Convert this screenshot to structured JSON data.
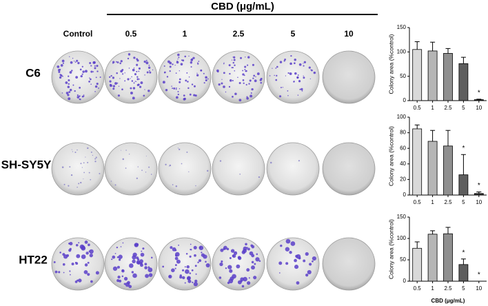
{
  "header": {
    "title": "CBD (μg/mL)",
    "columns": [
      "Control",
      "0.5",
      "1",
      "2.5",
      "5",
      "10"
    ],
    "rows": [
      "C6",
      "SH-SY5Y",
      "HT22"
    ]
  },
  "chart_data": [
    {
      "type": "bar",
      "categories": [
        "0.5",
        "1",
        "2.5",
        "5",
        "10"
      ],
      "values": [
        105,
        102,
        97,
        76,
        2
      ],
      "errors": [
        16,
        18,
        10,
        13,
        1
      ],
      "colors": [
        "#d9d9d9",
        "#b5b5b5",
        "#8f8f8f",
        "#5e5e5e",
        "#333333"
      ],
      "ylim": [
        0,
        150
      ],
      "yticks": [
        0,
        50,
        100,
        150
      ],
      "y_label": "Colony area (%control)",
      "annotations": [
        {
          "text": "*",
          "at": "10"
        }
      ]
    },
    {
      "type": "bar",
      "categories": [
        "0.5",
        "1",
        "2.5",
        "5",
        "10"
      ],
      "values": [
        85,
        69,
        63,
        26,
        2
      ],
      "errors": [
        5,
        14,
        20,
        26,
        2
      ],
      "colors": [
        "#d9d9d9",
        "#b5b5b5",
        "#8f8f8f",
        "#5e5e5e",
        "#333333"
      ],
      "ylim": [
        0,
        100
      ],
      "yticks": [
        0,
        20,
        40,
        60,
        80,
        100
      ],
      "y_label": "Colony area (%control)",
      "annotations": [
        {
          "text": "*",
          "at": "5"
        },
        {
          "text": "*",
          "at": "10"
        }
      ]
    },
    {
      "type": "bar",
      "categories": [
        "0.5",
        "1",
        "2.5",
        "5",
        "10"
      ],
      "values": [
        77,
        110,
        111,
        39,
        0
      ],
      "errors": [
        15,
        8,
        15,
        13,
        0
      ],
      "colors": [
        "#d9d9d9",
        "#b5b5b5",
        "#8f8f8f",
        "#5e5e5e",
        "#333333"
      ],
      "ylim": [
        0,
        150
      ],
      "yticks": [
        0,
        50,
        100,
        150
      ],
      "y_label": "Colony area (%control)",
      "x_label": "CBD (μg/mL)",
      "annotations": [
        {
          "text": "*",
          "at": "5"
        },
        {
          "text": "*",
          "at": "10"
        }
      ]
    }
  ]
}
